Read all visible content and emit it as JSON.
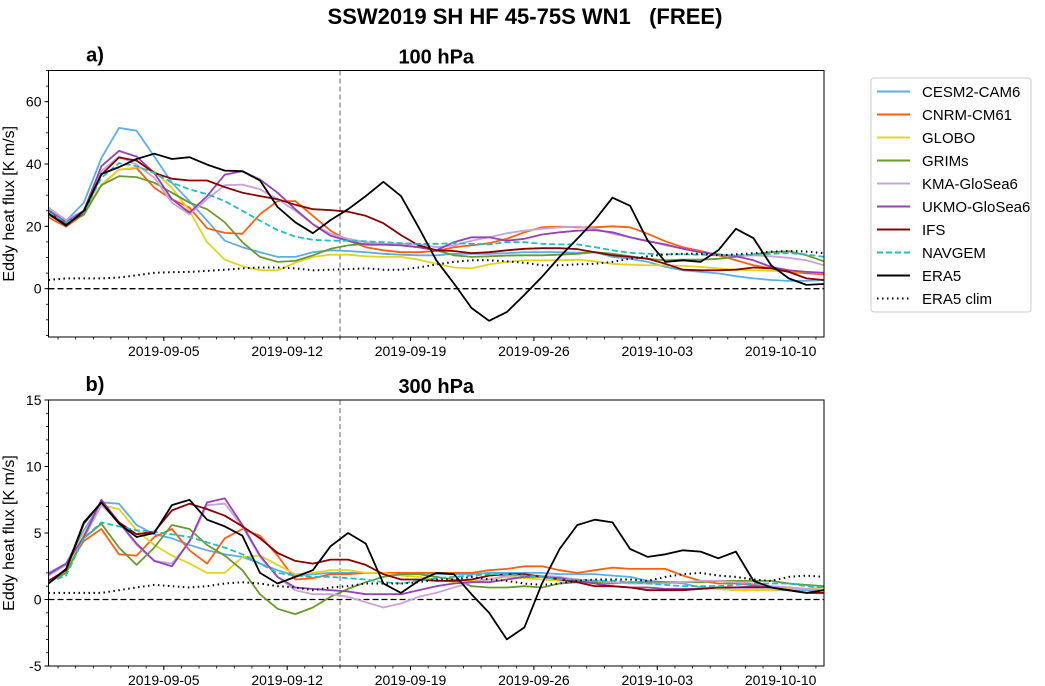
{
  "chart_data": {
    "type": "line",
    "title": "SSW2019 SH HF 45-75S WN1   (FREE)",
    "ylabel": "Eddy heat flux [K m/s]",
    "x_start": "2019-08-29T11:00:00Z",
    "x_step_days": 1,
    "xticks": [
      "2019-09-05",
      "2019-09-12",
      "2019-09-19",
      "2019-09-26",
      "2019-10-03",
      "2019-10-10"
    ],
    "event_line_date": "2019-09-15T00:00:00Z",
    "legend_placement": "right outside",
    "styles": [
      {
        "name": "CESM2-CAM6",
        "color": "#5aaeea",
        "dash": "solid"
      },
      {
        "name": "CNRM-CM61",
        "color": "#ff5f0f",
        "dash": "solid"
      },
      {
        "name": "GLOBO",
        "color": "#e3d41f",
        "dash": "solid"
      },
      {
        "name": "GRIMs",
        "color": "#6a9a2e",
        "dash": "solid"
      },
      {
        "name": "KMA-GloSea6",
        "color": "#c9a3d6",
        "dash": "solid"
      },
      {
        "name": "UKMO-GloSea6",
        "color": "#9542b5",
        "dash": "solid"
      },
      {
        "name": "IFS",
        "color": "#8b0000",
        "dash": "solid"
      },
      {
        "name": "NAVGEM",
        "color": "#1fbfc4",
        "dash": "dashed"
      },
      {
        "name": "ERA5",
        "color": "#000000",
        "dash": "solid"
      },
      {
        "name": "ERA5 clim",
        "color": "#000000",
        "dash": "dotted"
      }
    ],
    "panels": [
      {
        "label": "a)",
        "title": "100 hPa",
        "ylim": [
          -15.5,
          70
        ],
        "yticks": [
          0,
          20,
          40,
          60
        ],
        "series": {
          "CESM2-CAM6": [
            25.5,
            21.8,
            27.6,
            41.9,
            51.6,
            50.7,
            42.4,
            34,
            28.1,
            21.8,
            15.4,
            13.3,
            11.7,
            10.2,
            10.2,
            11.7,
            12.3,
            12.1,
            11.7,
            11.2,
            10.9,
            10.7,
            10.7,
            11.2,
            11.2,
            11.2,
            11.4,
            11.7,
            11.7,
            11.7,
            11.5,
            11.7,
            10.2,
            9.6,
            8.6,
            7,
            5.9,
            5.4,
            4.9,
            4,
            3.3,
            2.8,
            2.5,
            2.5,
            2.8
          ],
          "CNRM-CM61": [
            22.9,
            19.9,
            23.9,
            33.2,
            38.2,
            38.7,
            32.4,
            28.7,
            26,
            19.4,
            17.9,
            17.6,
            23.9,
            28.1,
            28.1,
            23.4,
            18.6,
            15.4,
            13.3,
            12.3,
            11.7,
            11.7,
            12.1,
            13.3,
            13.9,
            14.6,
            16,
            18.1,
            19.7,
            19.9,
            19.7,
            19.7,
            20,
            19.7,
            17.6,
            15.2,
            13.3,
            12.1,
            10.7,
            9.1,
            7.5,
            6.5,
            5.4,
            4.9,
            4.6
          ],
          "GLOBO": [
            23.9,
            20.7,
            24.4,
            33.4,
            38.2,
            38.9,
            37.7,
            32.4,
            25,
            14.9,
            9.3,
            7.2,
            5.9,
            5.9,
            8.3,
            10.2,
            10.9,
            10.9,
            10.4,
            10.2,
            10.2,
            9.3,
            8,
            6.8,
            6.5,
            7.8,
            8.6,
            9.1,
            9.1,
            9.1,
            9.3,
            8.8,
            8,
            7.7,
            7.5,
            7.5,
            7.3,
            7,
            6.5,
            6.1,
            5.9,
            5.7,
            5.6,
            5.4,
            4.9
          ],
          "GRIMs": [
            23.7,
            20.7,
            23.7,
            33.2,
            36.1,
            35.8,
            34,
            30.8,
            27.6,
            25.5,
            21.3,
            14.9,
            10.2,
            8.6,
            8.9,
            10.7,
            12.8,
            13.9,
            14.4,
            14.4,
            13.9,
            13.3,
            12.3,
            10.7,
            10.2,
            10.4,
            10.6,
            10.7,
            10.7,
            10.9,
            11.2,
            11.7,
            11.2,
            10.4,
            9.6,
            9.1,
            9.3,
            9.3,
            9.6,
            10.2,
            11,
            11.7,
            12,
            10.7,
            8.8
          ],
          "KMA-GloSea6": [
            26,
            22,
            25,
            37.7,
            42.4,
            39.8,
            35.6,
            27.6,
            23.9,
            28.7,
            33.2,
            33.4,
            31.9,
            28.7,
            25,
            20.7,
            17.6,
            16,
            14.9,
            14.4,
            14.4,
            14.2,
            13.3,
            13.9,
            15.4,
            16.5,
            17.8,
            18.6,
            19.2,
            19.7,
            19.9,
            19.2,
            17.6,
            16.5,
            15.4,
            13.9,
            12.8,
            11.7,
            11,
            10.4,
            10.7,
            10.4,
            9.9,
            9.1,
            7.5
          ],
          "UKMO-GloSea6": [
            25,
            21.3,
            25,
            39.3,
            44.2,
            42.4,
            37.1,
            28.7,
            24.4,
            29.7,
            36.6,
            37.7,
            35,
            30.8,
            25.5,
            20.7,
            17,
            15.4,
            14.1,
            14.1,
            13.9,
            13.3,
            12.3,
            14.9,
            16.5,
            16.5,
            15.4,
            16,
            17.4,
            18.1,
            18.6,
            18.8,
            18.1,
            16.5,
            15.2,
            14.2,
            12.8,
            11.7,
            11,
            10.4,
            9.1,
            7,
            5.9,
            5.4,
            5.1
          ],
          "IFS": [
            24.4,
            20.5,
            24.4,
            36.6,
            42.1,
            41.1,
            37.1,
            35.3,
            34.7,
            34.7,
            32.6,
            30.8,
            29.7,
            28.7,
            26.9,
            25.5,
            25.2,
            24.7,
            23.4,
            21,
            17.2,
            13.9,
            12.3,
            12.1,
            11.4,
            11.7,
            12.3,
            12.8,
            13,
            13,
            12.7,
            11.7,
            10.7,
            10.2,
            9.6,
            8,
            6.1,
            5.9,
            5.9,
            6.1,
            6.8,
            6.5,
            5.4,
            3.3,
            2.8
          ],
          "NAVGEM": [
            24.4,
            21.3,
            24.4,
            35.6,
            40.3,
            39.3,
            37.1,
            34,
            31.9,
            30.3,
            28.1,
            25,
            21.8,
            18.8,
            16.7,
            15.7,
            15.4,
            15.4,
            15.2,
            14.9,
            14.6,
            14.4,
            14.4,
            14.6,
            14.4,
            14.2,
            14.9,
            14.9,
            14.4,
            14.2,
            14.2,
            13.3,
            12.3,
            11.5,
            11.2,
            11,
            11,
            10.9,
            10.7,
            10.7,
            10.9,
            11.2,
            11.4,
            11,
            10.2
          ],
          "ERA5": [
            24.1,
            20.2,
            25,
            36.8,
            39,
            41.6,
            43.3,
            41.6,
            42.2,
            39.8,
            37.9,
            37.7,
            34.7,
            26.2,
            21.3,
            17.8,
            22,
            25.5,
            29.7,
            34.3,
            29.7,
            19.7,
            9.1,
            1.7,
            -6.2,
            -10.3,
            -7.5,
            -2,
            3.8,
            10.2,
            16,
            22,
            29.2,
            26.6,
            15.4,
            8.6,
            9.1,
            8.6,
            12.3,
            19.2,
            16.2,
            7.5,
            3.3,
            1.2,
            1.5
          ],
          "ERA5 clim": [
            2.8,
            3.3,
            3.3,
            3.3,
            3.6,
            4.3,
            5.1,
            5.3,
            5.4,
            5.7,
            6.1,
            6.5,
            6.8,
            6.8,
            6.5,
            5.9,
            6.1,
            6.3,
            6.5,
            6.1,
            6.1,
            6.8,
            7.8,
            8.6,
            9.1,
            9.1,
            8.8,
            8.3,
            7.5,
            7.5,
            7.8,
            8,
            8.6,
            9.6,
            10.4,
            11,
            11.2,
            11.2,
            10.7,
            11,
            11.4,
            11.9,
            12.1,
            11.9,
            11.4
          ]
        }
      },
      {
        "label": "b)",
        "title": "300 hPa",
        "ylim": [
          -5,
          15
        ],
        "yticks": [
          -5,
          0,
          5,
          10,
          15
        ],
        "series": {
          "CESM2-CAM6": [
            2,
            2.7,
            5.2,
            7.3,
            7.2,
            5.6,
            4.9,
            4.6,
            4.1,
            3.7,
            3.4,
            3.2,
            2.7,
            2.2,
            1.8,
            1.9,
            2,
            2,
            2,
            2,
            2,
            2,
            1.9,
            1.9,
            1.9,
            2,
            2,
            2,
            2,
            1.9,
            1.9,
            1.9,
            1.8,
            1.7,
            1.4,
            1.3,
            1.2,
            0.9,
            0.8,
            0.7,
            0.7,
            0.7,
            0.7,
            0.7,
            0.7
          ],
          "CNRM-CM61": [
            1.3,
            2.3,
            4.4,
            5.3,
            3.4,
            3.3,
            4.7,
            5.3,
            3.7,
            2.7,
            4.6,
            5.3,
            4.8,
            3.3,
            1.5,
            1.6,
            1.9,
            1.9,
            2,
            2,
            2,
            2,
            2,
            2,
            2,
            2.2,
            2.3,
            2.5,
            2.5,
            2.2,
            2,
            2.2,
            2.4,
            2.3,
            2.3,
            2.3,
            1.8,
            1.4,
            1.2,
            1.2,
            1.1,
            1,
            0.9,
            0.8,
            0.7
          ],
          "GLOBO": [
            1.2,
            2.2,
            4.9,
            7.1,
            6.8,
            5.2,
            4.1,
            3.3,
            2.7,
            2,
            2,
            3.2,
            3.3,
            2.6,
            1.9,
            2,
            2.2,
            2.2,
            2,
            2,
            1.8,
            1.7,
            1.5,
            1.3,
            1.4,
            1.5,
            1.7,
            1.6,
            1.5,
            1.4,
            1.3,
            1.2,
            1,
            0.9,
            0.9,
            0.8,
            0.8,
            0.8,
            0.8,
            0.7,
            0.7,
            0.7,
            0.8,
            0.8,
            0.9
          ],
          "GRIMs": [
            1.3,
            2,
            4.6,
            5.7,
            3.9,
            2.6,
            3.9,
            5.6,
            5.3,
            4.1,
            3.3,
            2.2,
            0.4,
            -0.7,
            -1.1,
            -0.6,
            0.2,
            0.8,
            1.3,
            1.7,
            1.9,
            1.9,
            1.7,
            1.5,
            1,
            0.9,
            0.9,
            1,
            0.9,
            1.2,
            1.3,
            1.3,
            1.2,
            1.3,
            1.3,
            1.3,
            1.3,
            1.3,
            1.4,
            1.4,
            1.4,
            1.4,
            1.2,
            1.1,
            1
          ],
          "KMA-GloSea6": [
            1.8,
            2.6,
            4.6,
            7.1,
            5.8,
            4.1,
            2.9,
            2.7,
            4.3,
            7.1,
            7.2,
            5.5,
            3.2,
            1.7,
            0.7,
            0.4,
            0.4,
            0.2,
            -0.2,
            -0.6,
            -0.3,
            0.2,
            0.5,
            0.9,
            1.3,
            1.5,
            1.8,
            1.8,
            1.8,
            1.7,
            1.5,
            1.4,
            1.3,
            1.2,
            1.2,
            1.2,
            1.3,
            1.4,
            1.4,
            1.3,
            1.2,
            1,
            0.9,
            0.8,
            0.7
          ],
          "UKMO-GloSea6": [
            1.9,
            2.7,
            4.7,
            7.5,
            5.8,
            4.2,
            2.9,
            2.5,
            4.4,
            7.3,
            7.6,
            5.6,
            3.3,
            1.7,
            0.9,
            0.8,
            0.7,
            0.6,
            0.4,
            0.4,
            0.4,
            0.7,
            1,
            1.2,
            1.3,
            1.3,
            1.5,
            1.7,
            1.7,
            1.6,
            1.4,
            1.2,
            1,
            0.9,
            0.9,
            0.8,
            0.8,
            0.8,
            0.9,
            0.9,
            1,
            0.9,
            0.7,
            0.5,
            0.5
          ],
          "IFS": [
            1.4,
            2.2,
            5.7,
            7.3,
            5.8,
            4.9,
            5.1,
            6.7,
            7.2,
            6.8,
            6.3,
            5.5,
            4.6,
            3.5,
            2.9,
            2.7,
            3,
            3,
            2.6,
            1.9,
            1.5,
            1.5,
            1.4,
            1.4,
            1.5,
            1.8,
            1.9,
            1.9,
            1.7,
            1.5,
            1.3,
            1,
            1,
            0.9,
            0.7,
            0.7,
            0.7,
            0.8,
            0.9,
            0.9,
            0.9,
            0.9,
            0.7,
            0.5,
            0.5
          ],
          "NAVGEM": [
            1.3,
            1.8,
            4.6,
            5.8,
            5.5,
            5.2,
            5.1,
            4.9,
            4.7,
            4.3,
            3.9,
            3.4,
            2.7,
            2,
            1.8,
            1.7,
            1.7,
            1.6,
            1.5,
            1.3,
            1.2,
            1.4,
            1.6,
            1.7,
            1.8,
            1.9,
            1.9,
            1.8,
            1.7,
            1.5,
            1.5,
            1.4,
            1.4,
            1.3,
            1.2,
            1.1,
            1,
            1,
            1,
            1.1,
            1.2,
            1.2,
            1.2,
            1,
            0.9
          ],
          "ERA5": [
            1.2,
            2.3,
            5.8,
            7.3,
            5.7,
            4.7,
            5,
            7.1,
            7.5,
            6,
            5.5,
            4.8,
            2,
            1.2,
            1.7,
            2.2,
            4,
            5,
            4.2,
            1.2,
            0.5,
            1.4,
            2,
            1.9,
            0.4,
            -1,
            -3,
            -2.1,
            1.2,
            3.8,
            5.6,
            6,
            5.8,
            3.8,
            3.2,
            3.4,
            3.7,
            3.6,
            3.1,
            3.6,
            1.4,
            0.9,
            0.7,
            0.5,
            0.7
          ],
          "ERA5 clim": [
            0.5,
            0.5,
            0.5,
            0.5,
            0.7,
            0.9,
            1.1,
            1,
            0.9,
            1,
            1.2,
            1.3,
            1.2,
            1,
            0.9,
            0.7,
            0.9,
            1,
            1.2,
            1.2,
            1.2,
            1.3,
            1.5,
            1.5,
            1.7,
            1.5,
            1.4,
            1.2,
            1.1,
            1.2,
            1.4,
            1.5,
            1.5,
            1.5,
            1.4,
            1.7,
            1.9,
            2,
            1.8,
            1.7,
            1.5,
            1.4,
            1.7,
            1.8,
            1.7
          ]
        }
      }
    ]
  }
}
